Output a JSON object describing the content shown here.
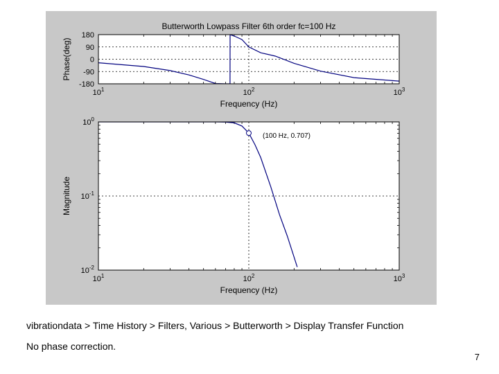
{
  "slide": {
    "caption_path": "vibrationdata > Time History > Filters, Various > Butterworth > Display Transfer Function",
    "caption_note": "No phase correction.",
    "page_number": "7"
  },
  "colors": {
    "figure_background": "#c8c8c8",
    "axes_background": "#ffffff",
    "curve": "#00007f",
    "grid": "#000000"
  },
  "chart_data": [
    {
      "type": "line",
      "title": "Butterworth Lowpass Filter 6th order fc=100 Hz",
      "xlabel": "Frequency (Hz)",
      "ylabel": "Phase(deg)",
      "xscale": "log",
      "xlim": [
        10,
        1000
      ],
      "ylim": [
        -180,
        180
      ],
      "x_ticks": [
        "10^1",
        "10^2",
        "10^3"
      ],
      "y_ticks": [
        "180",
        "90",
        "0",
        "-90",
        "-180"
      ],
      "grid": true,
      "series": [
        {
          "x": [
            10,
            20,
            30,
            40,
            50,
            60,
            70,
            75,
            75.1,
            80,
            90,
            100,
            120,
            150,
            200,
            300,
            500,
            1000
          ],
          "values": [
            -26,
            -53,
            -83,
            -115,
            -148,
            -178,
            -180,
            -180,
            180,
            170,
            144,
            90,
            47,
            23,
            -30,
            -87,
            -135,
            -160
          ]
        }
      ]
    },
    {
      "type": "line",
      "xlabel": "Frequency (Hz)",
      "ylabel": "Magnitude",
      "xscale": "log",
      "yscale": "log",
      "xlim": [
        10,
        1000
      ],
      "ylim": [
        0.01,
        1
      ],
      "x_ticks": [
        "10^1",
        "10^2",
        "10^3"
      ],
      "y_ticks": [
        "10^0",
        "10^-1",
        "10^-2"
      ],
      "grid": true,
      "annotation": {
        "text": "(100 Hz, 0.707)",
        "x": 100,
        "y": 0.707
      },
      "series": [
        {
          "x": [
            10,
            40,
            60,
            70,
            80,
            90,
            100,
            110,
            120,
            140,
            160,
            180,
            200,
            210
          ],
          "values": [
            1.0,
            1.0,
            0.999,
            0.994,
            0.97,
            0.88,
            0.707,
            0.49,
            0.33,
            0.133,
            0.056,
            0.029,
            0.015,
            0.011
          ]
        }
      ]
    }
  ]
}
